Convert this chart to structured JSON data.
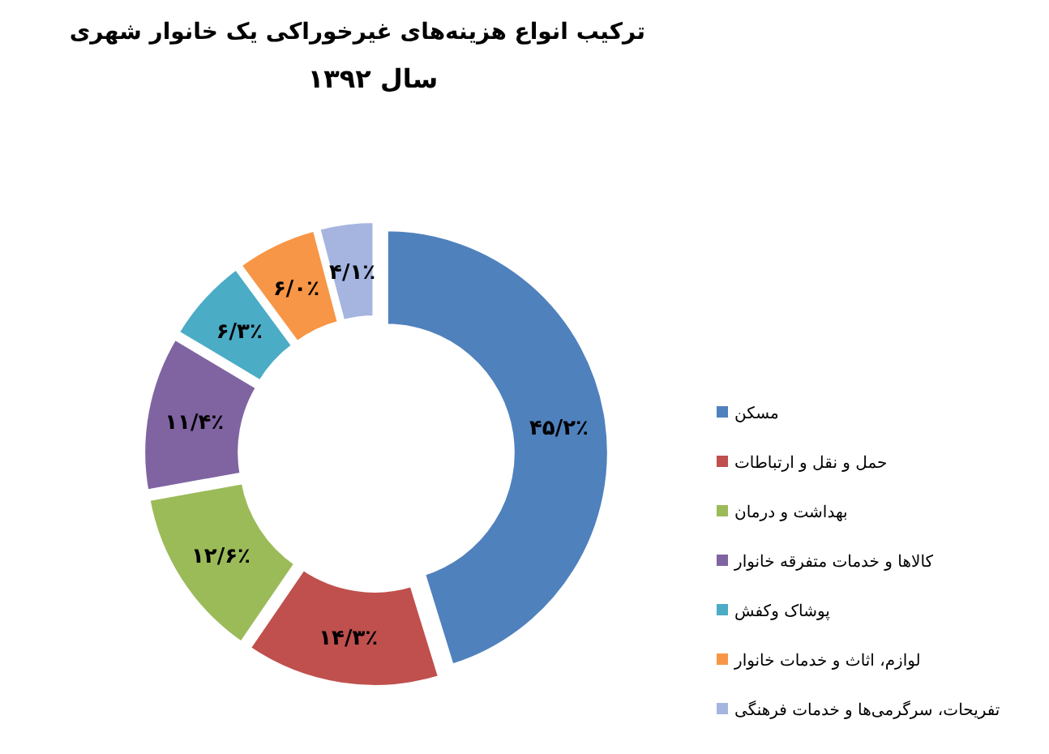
{
  "chart_data": {
    "type": "donut",
    "title": "ترکیب انواع هزینه‌های غیرخوراکی یک خانوار شهری",
    "subtitle": "سال ۱۳۹۲",
    "categories": [
      "مسکن",
      "حمل و نقل و ارتباطات",
      "بهداشت و درمان",
      "کالاها و خدمات متفرقه خانوار",
      "پوشاک وکفش",
      "لوازم، اثاث و خدمات خانوار",
      "تفریحات، سرگرمی‌ها و خدمات فرهنگی"
    ],
    "values": [
      45.2,
      14.3,
      12.6,
      11.4,
      6.3,
      6.0,
      4.1
    ],
    "colors": [
      "#4f81bd",
      "#c0504d",
      "#9bbb59",
      "#8064a2",
      "#4bacc6",
      "#f79646",
      "#a5b5e0"
    ],
    "value_labels": [
      "۴۵/۲٪",
      "۱۴/۳٪",
      "۱۲/۶٪",
      "۱۱/۴٪",
      "۶/۳٪",
      "۶/۰٪",
      "۴/۱٪"
    ],
    "legend": "right"
  }
}
